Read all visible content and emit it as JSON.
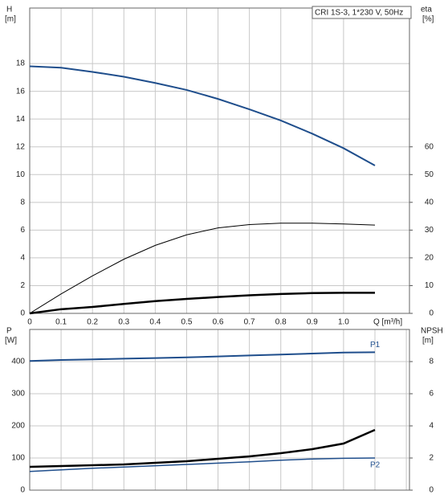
{
  "chart_data": [
    {
      "type": "line",
      "title": "CRI 1S-3, 1*230 V, 50Hz",
      "ylabel": "H",
      "yunit": "[m]",
      "y2label": "eta",
      "y2unit": "[%]",
      "xlabel": "Q [m³/h]",
      "x": [
        0,
        0.1,
        0.2,
        0.3,
        0.4,
        0.5,
        0.6,
        0.7,
        0.8,
        0.9,
        1.0,
        1.1
      ],
      "xlim": [
        0,
        1.21
      ],
      "xticks": [
        0,
        0.1,
        0.2,
        0.3,
        0.4,
        0.5,
        0.6,
        0.7,
        0.8,
        0.9,
        {
          "value": 1.0,
          "label": "1.0"
        }
      ],
      "ylim": [
        0,
        22
      ],
      "yticks": [
        0,
        2,
        4,
        6,
        8,
        10,
        12,
        14,
        16,
        18
      ],
      "y2lim": [
        0,
        110
      ],
      "y2ticks": [
        0,
        10,
        20,
        30,
        40,
        50,
        60
      ],
      "grid": true,
      "series": [
        {
          "color": "#1f4e8c",
          "width": 2,
          "values": [
            17.8,
            17.7,
            17.4,
            17.05,
            16.6,
            16.1,
            15.45,
            14.7,
            13.9,
            12.95,
            11.9,
            10.65
          ]
        },
        {
          "color": "#000000",
          "width": 1,
          "axis": "y2",
          "values": [
            0,
            7,
            13.5,
            19.5,
            24.5,
            28.3,
            30.8,
            32,
            32.5,
            32.5,
            32.2,
            31.8
          ]
        },
        {
          "color": "#000000",
          "width": 2.5,
          "axis": "y2",
          "values": [
            0,
            1.5,
            2.3,
            3.4,
            4.4,
            5.2,
            5.9,
            6.5,
            7,
            7.3,
            7.4,
            7.4
          ]
        }
      ]
    },
    {
      "type": "line",
      "ylabel": "P",
      "yunit": "[W]",
      "y2label": "NPSH",
      "y2unit": "[m]",
      "x": [
        0,
        0.1,
        0.2,
        0.3,
        0.4,
        0.5,
        0.6,
        0.7,
        0.8,
        0.9,
        1.0,
        1.1
      ],
      "xlim": [
        0,
        1.21
      ],
      "xgrid": [
        0,
        0.1,
        0.2,
        0.3,
        0.4,
        0.5,
        0.6,
        0.7,
        0.8,
        0.9,
        1.0,
        1.1,
        1.2
      ],
      "ylim": [
        0,
        500
      ],
      "yticks": [
        0,
        100,
        200,
        300,
        400
      ],
      "y2lim": [
        0,
        10
      ],
      "y2ticks": [
        0,
        2,
        4,
        6,
        8
      ],
      "grid": true,
      "series": [
        {
          "name": "P1",
          "color": "#1f4e8c",
          "width": 2,
          "values": [
            402,
            405,
            407,
            409,
            411,
            413,
            416,
            419,
            422,
            425,
            428,
            429
          ]
        },
        {
          "name": "P2",
          "color": "#1f4e8c",
          "width": 1.5,
          "values": [
            58,
            63,
            68,
            72,
            76,
            80,
            84,
            88,
            93,
            97,
            99,
            100
          ]
        },
        {
          "color": "#000000",
          "width": 2.5,
          "axis": "y2",
          "values": [
            1.45,
            1.5,
            1.55,
            1.6,
            1.7,
            1.8,
            1.95,
            2.1,
            2.3,
            2.55,
            2.9,
            3.75
          ]
        }
      ]
    }
  ]
}
